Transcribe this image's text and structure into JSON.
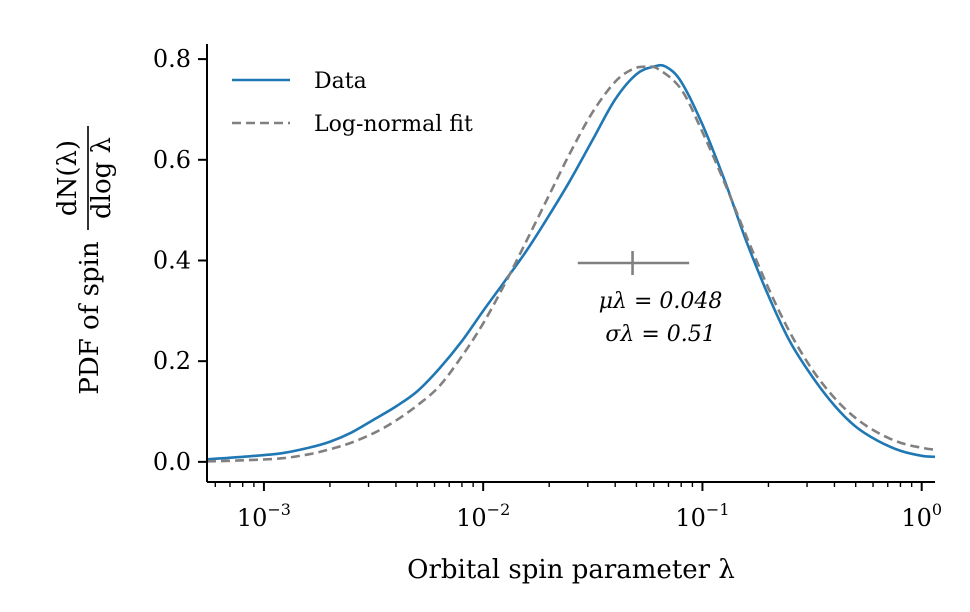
{
  "chart_data": {
    "type": "line",
    "xscale": "log",
    "xlim": [
      0.00055,
      1.15
    ],
    "ylim": [
      -0.04,
      0.83
    ],
    "xlabel": "Orbital spin parameter λ",
    "ylabel": {
      "prefix": "PDF of spin",
      "numerator": "dN(λ)",
      "denominator": "dlog λ"
    },
    "x_ticks": [
      {
        "value": 0.001,
        "base": "10",
        "exp": "−3"
      },
      {
        "value": 0.01,
        "base": "10",
        "exp": "−2"
      },
      {
        "value": 0.1,
        "base": "10",
        "exp": "−1"
      },
      {
        "value": 1,
        "base": "10",
        "exp": "0"
      }
    ],
    "y_ticks": [
      {
        "value": 0.0,
        "label": "0.0"
      },
      {
        "value": 0.2,
        "label": "0.2"
      },
      {
        "value": 0.4,
        "label": "0.4"
      },
      {
        "value": 0.6,
        "label": "0.6"
      },
      {
        "value": 0.8,
        "label": "0.8"
      }
    ],
    "legend": {
      "position": "top-left",
      "entries": [
        {
          "label": "Data",
          "color": "#1f77b4",
          "dash": "solid"
        },
        {
          "label": "Log-normal fit",
          "color": "#808080",
          "dash": "dashed"
        }
      ]
    },
    "series": [
      {
        "name": "Data",
        "color": "#1f77b4",
        "dash": "solid",
        "x": [
          0.00055,
          0.0008,
          0.0012,
          0.0016,
          0.002,
          0.0025,
          0.0032,
          0.004,
          0.005,
          0.0063,
          0.008,
          0.01,
          0.0126,
          0.0158,
          0.02,
          0.025,
          0.0316,
          0.04,
          0.05,
          0.06,
          0.068,
          0.08,
          0.1,
          0.126,
          0.158,
          0.2,
          0.25,
          0.316,
          0.4,
          0.5,
          0.63,
          0.8,
          1.0,
          1.15
        ],
        "y": [
          0.005,
          0.01,
          0.017,
          0.028,
          0.04,
          0.058,
          0.085,
          0.11,
          0.14,
          0.185,
          0.24,
          0.3,
          0.36,
          0.42,
          0.49,
          0.56,
          0.64,
          0.72,
          0.77,
          0.785,
          0.785,
          0.755,
          0.67,
          0.56,
          0.44,
          0.33,
          0.24,
          0.17,
          0.112,
          0.07,
          0.042,
          0.022,
          0.012,
          0.01
        ]
      },
      {
        "name": "Log-normal fit",
        "color": "#808080",
        "dash": "dashed",
        "x": [
          0.00055,
          0.0008,
          0.0012,
          0.0016,
          0.002,
          0.0025,
          0.0032,
          0.004,
          0.005,
          0.0063,
          0.008,
          0.01,
          0.0126,
          0.0158,
          0.02,
          0.025,
          0.0316,
          0.04,
          0.048,
          0.055,
          0.063,
          0.08,
          0.1,
          0.126,
          0.158,
          0.2,
          0.25,
          0.316,
          0.4,
          0.5,
          0.63,
          0.8,
          1.0,
          1.15
        ],
        "y": [
          0.001,
          0.003,
          0.007,
          0.015,
          0.025,
          0.038,
          0.058,
          0.082,
          0.112,
          0.15,
          0.21,
          0.275,
          0.355,
          0.44,
          0.53,
          0.615,
          0.695,
          0.755,
          0.78,
          0.785,
          0.78,
          0.74,
          0.655,
          0.555,
          0.45,
          0.345,
          0.258,
          0.184,
          0.127,
          0.087,
          0.058,
          0.038,
          0.028,
          0.024
        ]
      }
    ],
    "annotation": {
      "mu_label": "μλ = 0.048",
      "sigma_label": "σλ = 0.51",
      "center": 0.048,
      "range": [
        0.027,
        0.087
      ],
      "y": 0.395,
      "color": "#808080"
    }
  }
}
